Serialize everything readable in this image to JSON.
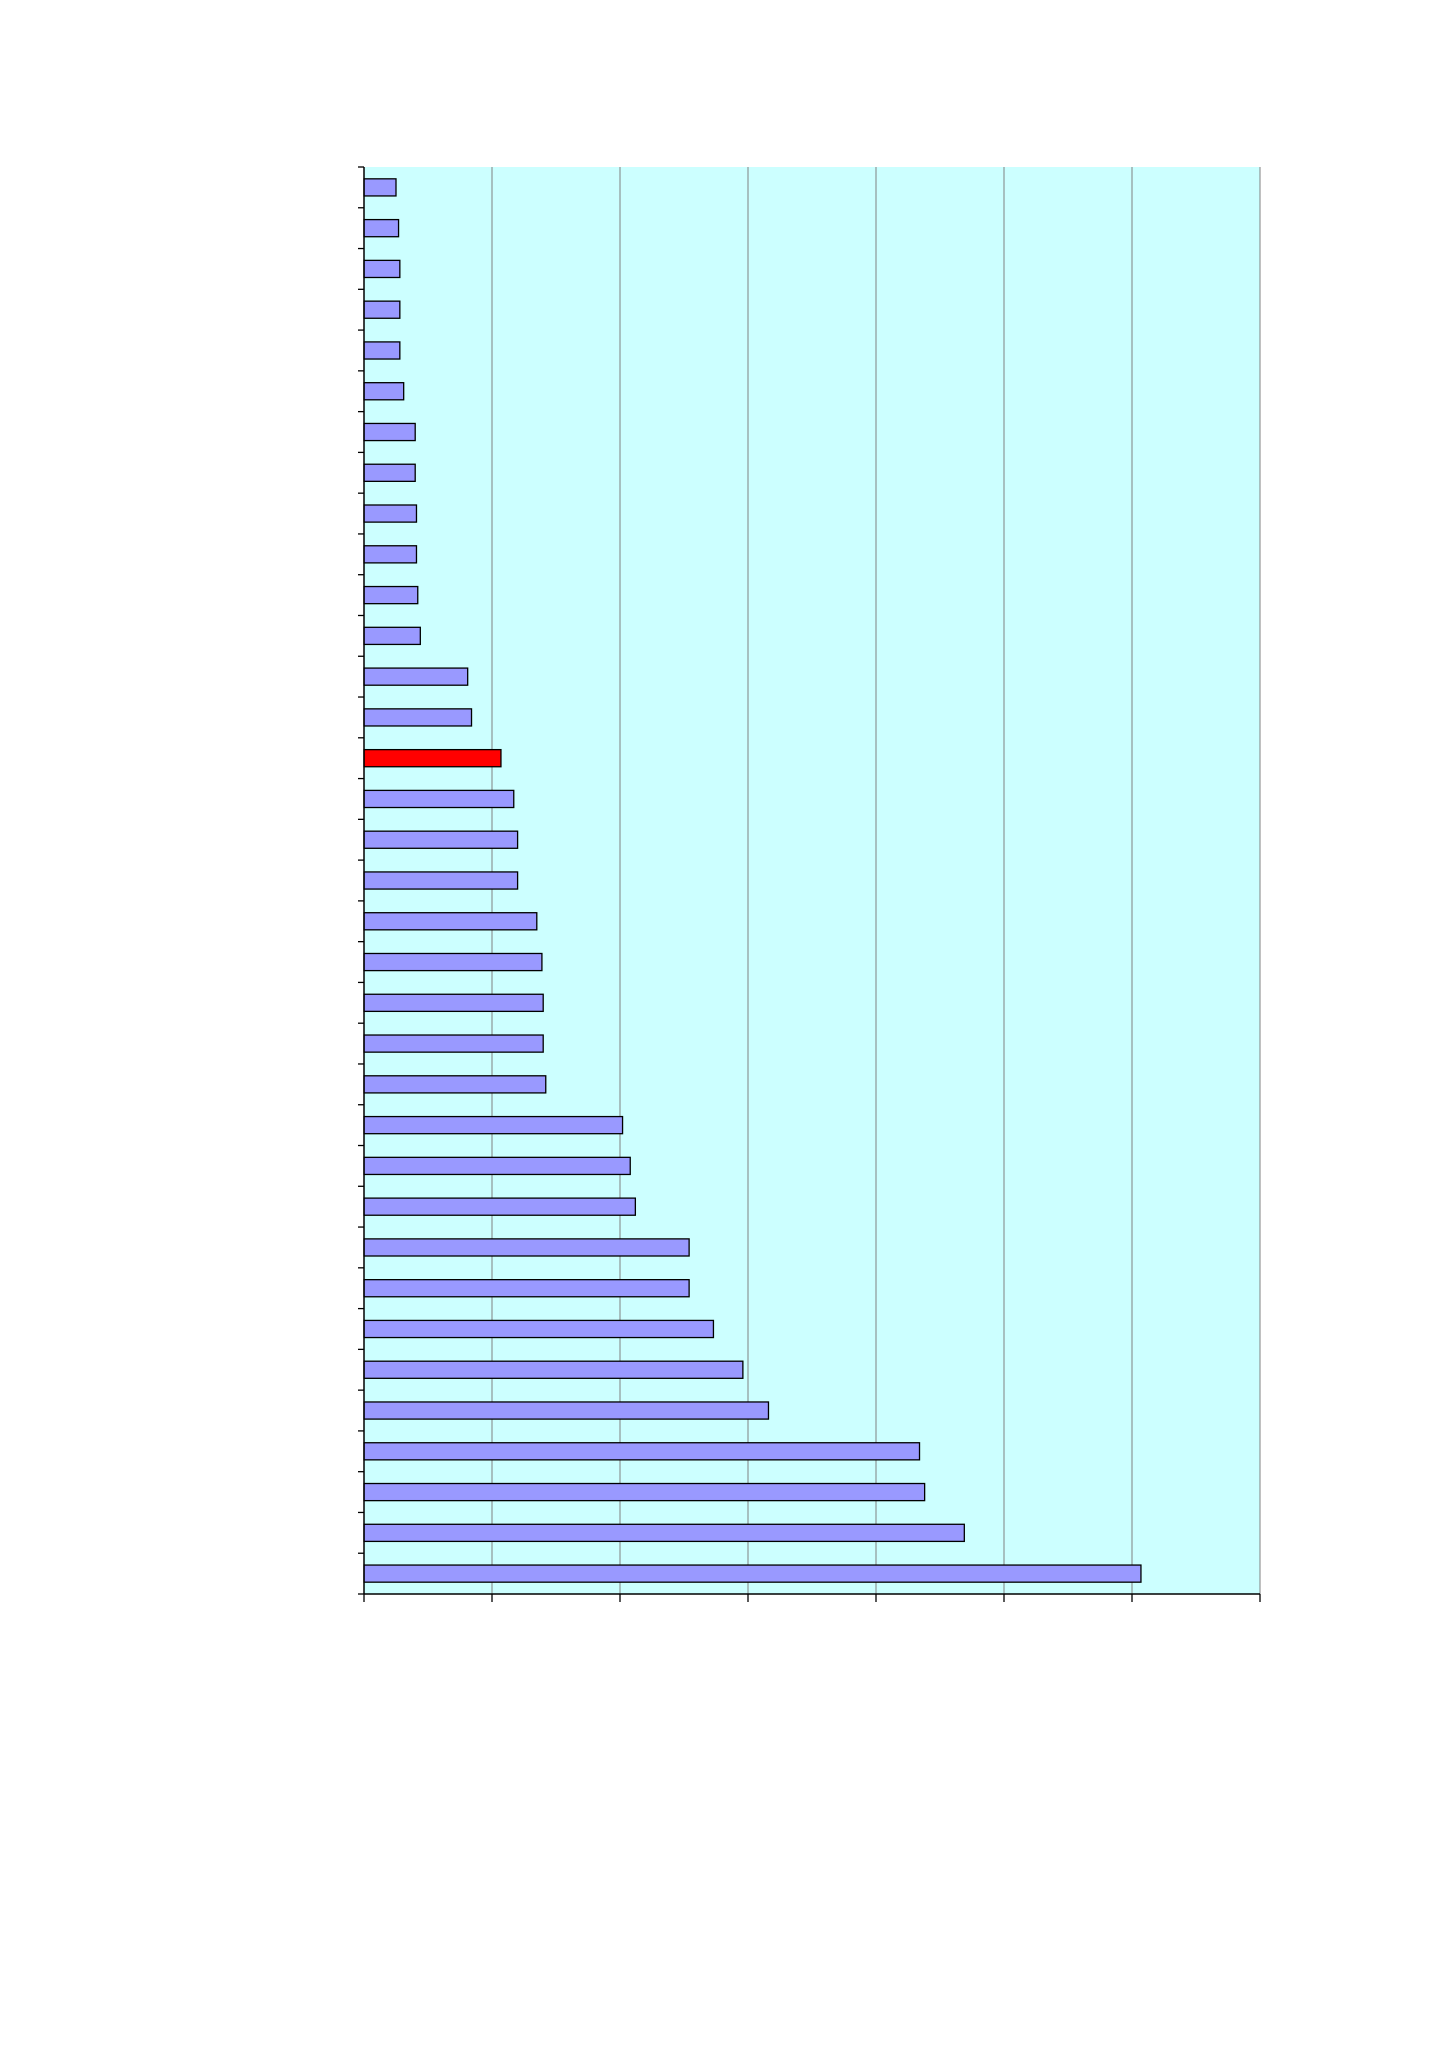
{
  "chart_data": {
    "type": "bar",
    "orientation": "horizontal",
    "title": "",
    "xlabel": "",
    "ylabel": "",
    "xlim": [
      0,
      7
    ],
    "grid": "vertical",
    "legend": "none",
    "colors": {
      "plot_background": "#ccffff",
      "bar": "#9999ff",
      "highlight_bar": "#ff0000",
      "bar_outline": "#000000",
      "gridline": "#808080"
    },
    "highlight_index": 14,
    "values": [
      0.25,
      0.27,
      0.28,
      0.28,
      0.28,
      0.31,
      0.4,
      0.4,
      0.41,
      0.41,
      0.42,
      0.44,
      0.81,
      0.84,
      1.07,
      1.17,
      1.2,
      1.2,
      1.35,
      1.39,
      1.4,
      1.4,
      1.42,
      2.02,
      2.08,
      2.12,
      2.54,
      2.54,
      2.73,
      2.96,
      3.16,
      4.34,
      4.38,
      4.69,
      6.07
    ]
  }
}
